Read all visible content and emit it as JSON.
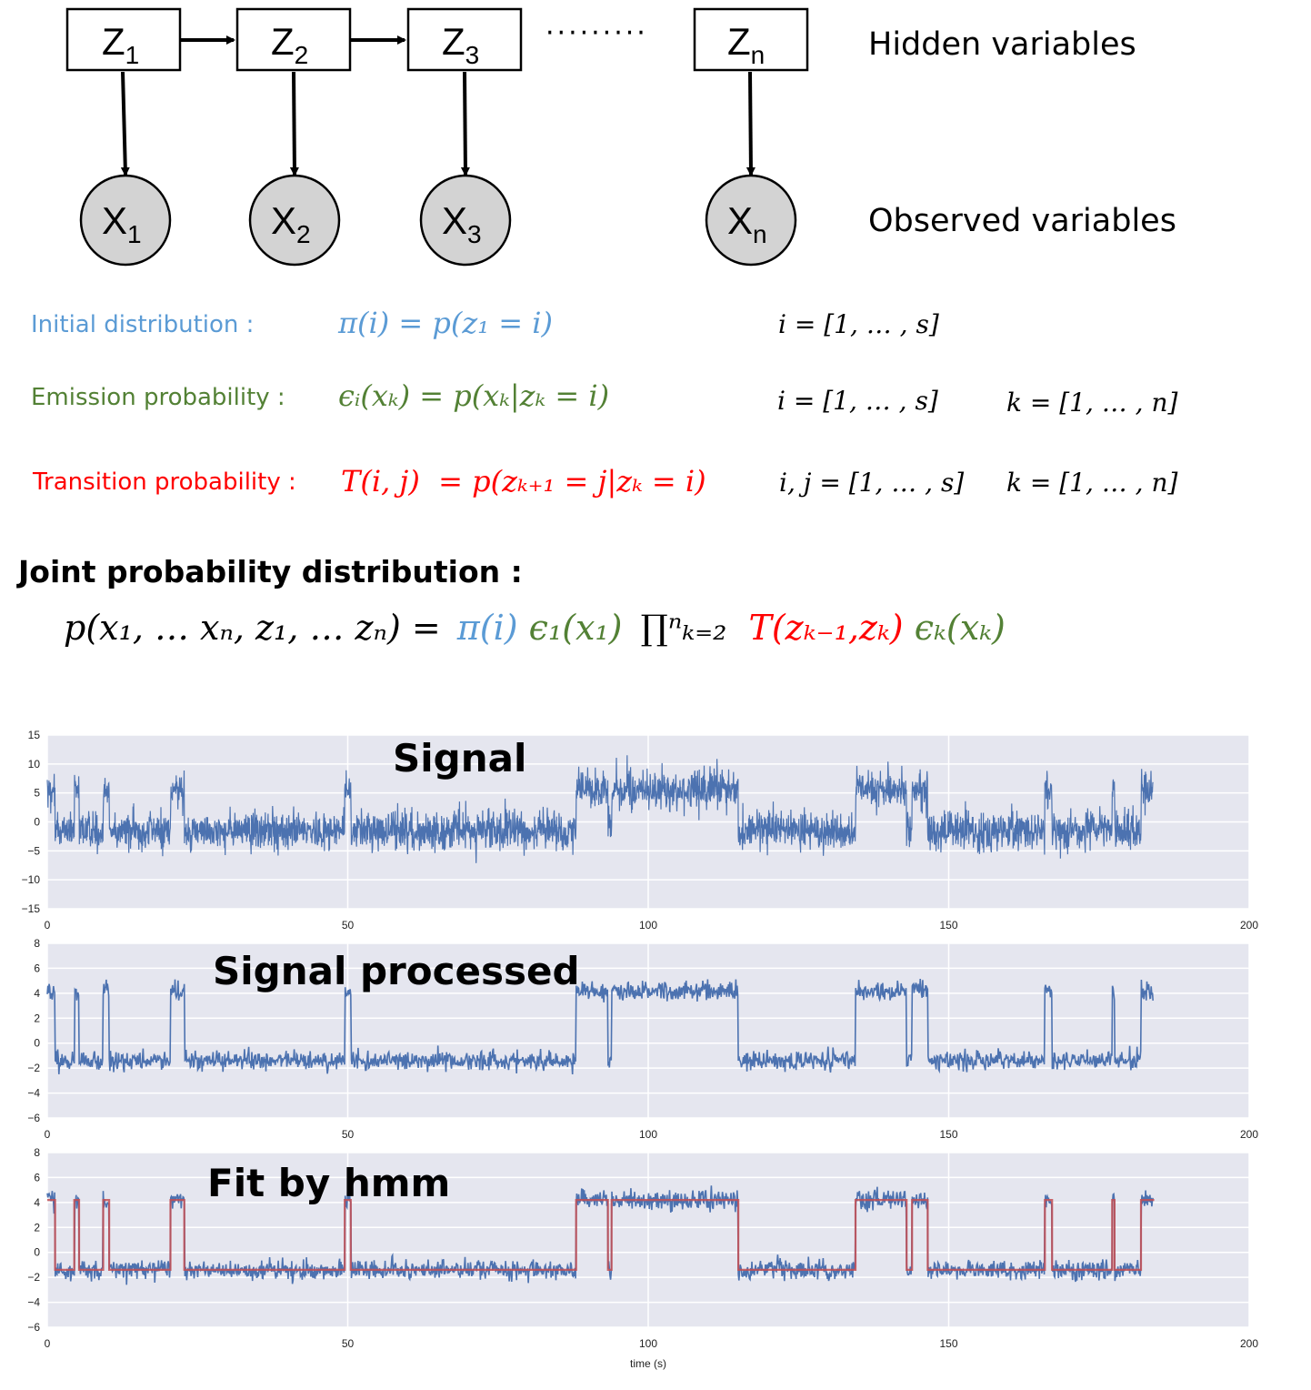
{
  "diagram": {
    "hidden_nodes": [
      {
        "base": "Z",
        "sub": "1"
      },
      {
        "base": "Z",
        "sub": "2"
      },
      {
        "base": "Z",
        "sub": "3"
      },
      {
        "base": "Z",
        "sub": "n"
      }
    ],
    "observed_nodes": [
      {
        "base": "X",
        "sub": "1"
      },
      {
        "base": "X",
        "sub": "2"
      },
      {
        "base": "X",
        "sub": "3"
      },
      {
        "base": "X",
        "sub": "n"
      }
    ],
    "ellipsis": "·········",
    "hidden_label": "Hidden variables",
    "observed_label": "Observed variables",
    "box_fill": "#ffffff",
    "circle_fill": "#d3d3d3"
  },
  "definitions": {
    "initial": {
      "label": "Initial distribution :",
      "formula": "π(i) = p(z₁ = i)",
      "range1": "i = [1, … , s]",
      "color": "#5b9bd5"
    },
    "emission": {
      "label": "Emission probability :",
      "formula": "ϵᵢ(xₖ) = p(xₖ|zₖ = i)",
      "range1": "i = [1, … , s]",
      "range2": "k = [1, … , n]",
      "color": "#538135"
    },
    "transition": {
      "label": "Transition probability :",
      "formula": "T(i, j)  = p(zₖ₊₁ = j|zₖ = i)",
      "range1": "i, j = [1, … , s]",
      "range2": "k = [1, … , n]",
      "color": "#ff0000"
    }
  },
  "joint": {
    "heading": "Joint probability distribution :",
    "lhs": "p(x₁, … xₙ, z₁, … zₙ) =",
    "pi_part": "π(i)",
    "emission_part": "ϵ₁(x₁)",
    "product_part": "∏ⁿₖ₌₂",
    "transition_part": "T(zₖ₋₁,zₖ)",
    "emission_k_part": "ϵₖ(xₖ)"
  },
  "chart_data": [
    {
      "type": "line",
      "title": "Signal",
      "xlim": [
        0,
        200
      ],
      "ylim": [
        -15,
        15
      ],
      "xticks": [
        0,
        50,
        100,
        150,
        200
      ],
      "yticks": [
        -15,
        -10,
        -5,
        0,
        5,
        10,
        15
      ],
      "ytick_labels": [
        "−15",
        "−10",
        "−5",
        "0",
        "5",
        "10",
        "15"
      ],
      "grid": true,
      "background": "#e5e6ef",
      "series": [
        {
          "color": "#4c72b0",
          "x_end": 184
        }
      ]
    },
    {
      "type": "line",
      "title": "Signal processed",
      "xlim": [
        0,
        200
      ],
      "ylim": [
        -6,
        8
      ],
      "xticks": [
        0,
        50,
        100,
        150,
        200
      ],
      "yticks": [
        -6,
        -4,
        -2,
        0,
        2,
        4,
        6,
        8
      ],
      "ytick_labels": [
        "−6",
        "−4",
        "−2",
        "0",
        "2",
        "4",
        "6",
        "8"
      ],
      "grid": true,
      "background": "#e5e6ef",
      "series": [
        {
          "color": "#4c72b0",
          "x_end": 184
        }
      ]
    },
    {
      "type": "line",
      "title": "Fit by hmm",
      "xlabel": "time (s)",
      "xlim": [
        0,
        200
      ],
      "ylim": [
        -6,
        8
      ],
      "xticks": [
        0,
        50,
        100,
        150,
        200
      ],
      "yticks": [
        -6,
        -4,
        -2,
        0,
        2,
        4,
        6,
        8
      ],
      "ytick_labels": [
        "−6",
        "−4",
        "−2",
        "0",
        "2",
        "4",
        "6",
        "8"
      ],
      "grid": true,
      "background": "#e5e6ef",
      "series": [
        {
          "color": "#4c72b0",
          "x_end": 184
        },
        {
          "color": "#c44e52",
          "x_end": 184,
          "levels": [
            4.2,
            -1.4
          ]
        }
      ]
    }
  ],
  "state_segments": [
    [
      0,
      1.3,
      "hi"
    ],
    [
      1.3,
      4.5,
      "lo"
    ],
    [
      4.5,
      5.3,
      "hi"
    ],
    [
      5.3,
      9.3,
      "lo"
    ],
    [
      9.3,
      10.3,
      "hi"
    ],
    [
      10.3,
      20.5,
      "lo"
    ],
    [
      20.5,
      22.8,
      "hi"
    ],
    [
      22.8,
      49.5,
      "lo"
    ],
    [
      49.5,
      50.5,
      "hi"
    ],
    [
      50.5,
      88,
      "lo"
    ],
    [
      88,
      93.3,
      "hi"
    ],
    [
      93.3,
      93.9,
      "lo"
    ],
    [
      93.9,
      115,
      "hi"
    ],
    [
      115,
      134.5,
      "lo"
    ],
    [
      134.5,
      143,
      "hi"
    ],
    [
      143,
      143.9,
      "lo"
    ],
    [
      143.9,
      146.5,
      "hi"
    ],
    [
      146.5,
      166,
      "lo"
    ],
    [
      166,
      167.2,
      "hi"
    ],
    [
      167.2,
      177.2,
      "lo"
    ],
    [
      177.2,
      177.6,
      "hi"
    ],
    [
      177.6,
      182,
      "lo"
    ],
    [
      182,
      184.2,
      "hi"
    ]
  ]
}
